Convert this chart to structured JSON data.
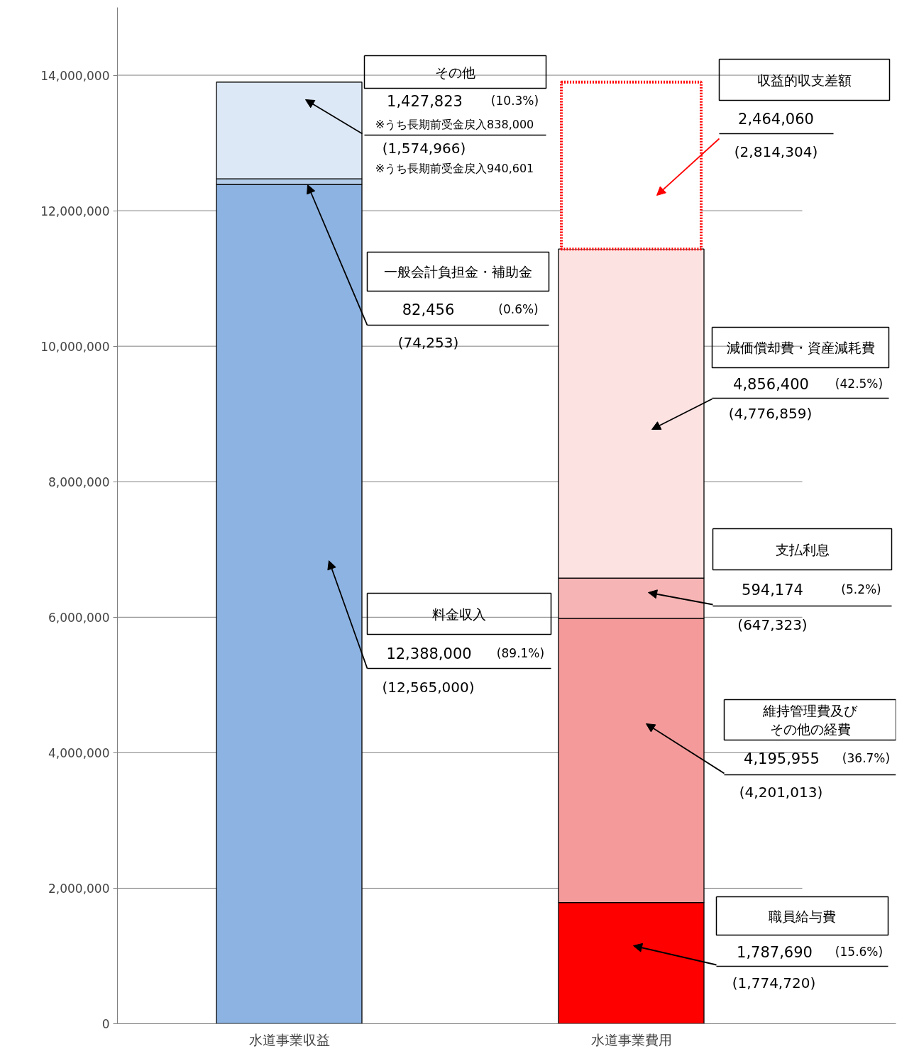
{
  "chart_data": {
    "type": "bar",
    "stacked": true,
    "categories": [
      "水道事業収益",
      "水道事業費用"
    ],
    "ylim": [
      0,
      15000000
    ],
    "yticks": [
      0,
      {
        "value": 2000000,
        "label": "2,000,000"
      },
      {
        "value": 4000000,
        "label": "4,000,000"
      },
      {
        "value": 6000000,
        "label": "6,000,000"
      },
      {
        "value": 8000000,
        "label": "8,000,000"
      },
      {
        "value": 10000000,
        "label": "10,000,000"
      },
      {
        "value": 12000000,
        "label": "12,000,000"
      },
      {
        "value": 14000000,
        "label": "14,000,000"
      }
    ],
    "grid": "y",
    "series": [
      {
        "color": "#8db3e2",
        "values": [
          12388000,
          null
        ]
      },
      {
        "color": "#b4cdea",
        "values": [
          82456,
          null
        ]
      },
      {
        "color": "#dde8f6",
        "values": [
          1427823,
          null
        ]
      },
      {
        "color": "#ff0000",
        "values": [
          null,
          1787690
        ]
      },
      {
        "color": "#f49a9a",
        "values": [
          null,
          4195955
        ]
      },
      {
        "color": "#f7b4b4",
        "values": [
          null,
          594174
        ]
      },
      {
        "color": "#fde2e2",
        "values": [
          null,
          4856400
        ]
      },
      {
        "color": "#ff0000",
        "line_style": "dotted",
        "values": [
          null,
          2464060
        ]
      }
    ],
    "annotations": [
      "12,388,000",
      "(89.1%)",
      "(12,565,000)",
      "82,456",
      "(0.6%)",
      "(74,253)",
      "1,427,823",
      "(10.3%)",
      "※うち長期前受金戻入838,000",
      "(1,574,966)",
      "※うち長期前受金戻入940,601",
      "1,787,690",
      "(15.6%)",
      "(1,774,720)",
      "4,195,955",
      "(36.7%)",
      "(4,201,013)",
      "594,174",
      "(5.2%)",
      "(647,323)",
      "4,856,400",
      "(42.5%)",
      "(4,776,859)",
      "2,464,060",
      "(2,814,304)",
      "料金収入",
      "一般会計負担金・補助金",
      "その他",
      "職員給与費",
      "維持管理費及びその他の経費",
      "支払利息",
      "減価償却費・資産減耗費",
      "収益的収支差額"
    ]
  }
}
